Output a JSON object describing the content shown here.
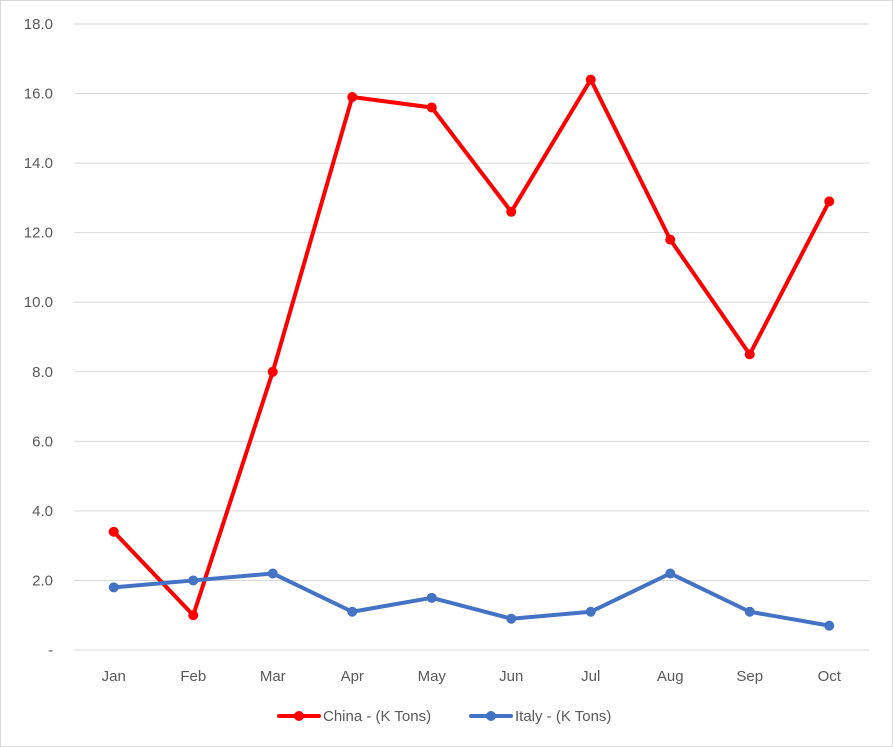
{
  "chart_data": {
    "type": "line",
    "title": "",
    "xlabel": "",
    "ylabel": "",
    "categories": [
      "Jan",
      "Feb",
      "Mar",
      "Apr",
      "May",
      "Jun",
      "Jul",
      "Aug",
      "Sep",
      "Oct"
    ],
    "ylim": [
      0,
      18
    ],
    "y_ticks": [
      {
        "value": 0,
        "label": "-"
      },
      {
        "value": 2,
        "label": "2.0"
      },
      {
        "value": 4,
        "label": "4.0"
      },
      {
        "value": 6,
        "label": "6.0"
      },
      {
        "value": 8,
        "label": "8.0"
      },
      {
        "value": 10,
        "label": "10.0"
      },
      {
        "value": 12,
        "label": "12.0"
      },
      {
        "value": 14,
        "label": "14.0"
      },
      {
        "value": 16,
        "label": "16.0"
      },
      {
        "value": 18,
        "label": "18.0"
      }
    ],
    "grid": true,
    "legend_position": "bottom",
    "series": [
      {
        "name": "China - (K Tons)",
        "color": "#ff0000",
        "values": [
          3.4,
          1.0,
          8.0,
          15.9,
          15.6,
          12.6,
          16.4,
          11.8,
          8.5,
          12.9
        ]
      },
      {
        "name": "Italy - (K Tons)",
        "color": "#4472c4",
        "values": [
          1.8,
          2.0,
          2.2,
          1.1,
          1.5,
          0.9,
          1.1,
          2.2,
          1.1,
          0.7
        ]
      }
    ]
  }
}
